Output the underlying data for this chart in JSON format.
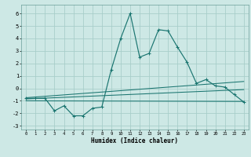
{
  "xlabel": "Humidex (Indice chaleur)",
  "background_color": "#cde8e5",
  "grid_color": "#a8ceca",
  "line_color": "#1a7570",
  "xlim": [
    -0.5,
    23.5
  ],
  "ylim": [
    -3.3,
    6.7
  ],
  "xticks": [
    0,
    1,
    2,
    3,
    4,
    5,
    6,
    7,
    8,
    9,
    10,
    11,
    12,
    13,
    14,
    15,
    16,
    17,
    18,
    19,
    20,
    21,
    22,
    23
  ],
  "yticks": [
    -3,
    -2,
    -1,
    0,
    1,
    2,
    3,
    4,
    5,
    6
  ],
  "main_x": [
    0,
    1,
    2,
    3,
    4,
    5,
    6,
    7,
    8,
    9,
    10,
    11,
    12,
    13,
    14,
    15,
    16,
    17,
    18,
    19,
    20,
    21,
    22,
    23
  ],
  "main_y": [
    -0.8,
    -0.8,
    -0.8,
    -1.8,
    -1.4,
    -2.2,
    -2.2,
    -1.6,
    -1.5,
    1.5,
    4.0,
    6.0,
    2.5,
    2.8,
    4.7,
    4.6,
    3.3,
    2.1,
    0.4,
    0.7,
    0.2,
    0.1,
    -0.5,
    -1.1
  ],
  "line1_x": [
    0,
    23
  ],
  "line1_y": [
    -0.75,
    0.55
  ],
  "line2_x": [
    0,
    23
  ],
  "line2_y": [
    -0.85,
    -0.1
  ],
  "line3_x": [
    0,
    23
  ],
  "line3_y": [
    -1.0,
    -1.05
  ]
}
